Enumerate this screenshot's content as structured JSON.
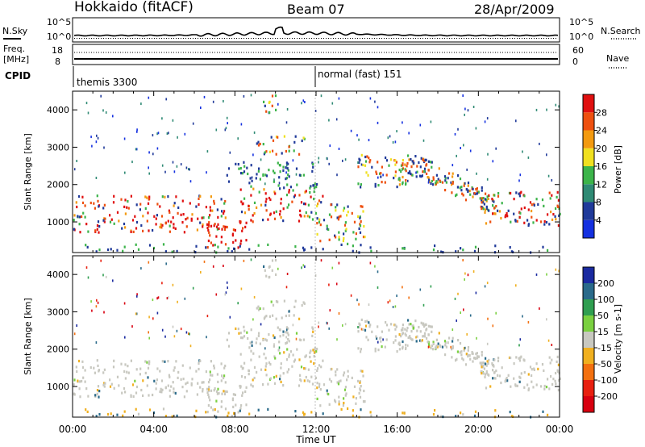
{
  "header": {
    "station": "Hokkaido (fitACF)",
    "beam": "Beam 07",
    "date": "28/Apr/2009"
  },
  "noise_panel": {
    "left_label": "N.Sky",
    "right_label": "N.Search",
    "ticks_left": [
      "10^5",
      "10^0"
    ],
    "ticks_right": [
      "10^5",
      "10^0"
    ]
  },
  "freq_panel": {
    "left_label_1": "Freq.",
    "left_label_2": "[MHz]",
    "right_label": "Nave",
    "ticks_left": [
      "18",
      "8"
    ],
    "ticks_right": [
      "60",
      "0"
    ]
  },
  "cpid": {
    "label": "CPID",
    "modes": [
      "themis 3300",
      "normal (fast) 151"
    ]
  },
  "time_axis": {
    "label": "Time UT",
    "ticks": [
      "00:00",
      "04:00",
      "08:00",
      "12:00",
      "16:00",
      "20:00",
      "00:00"
    ]
  },
  "range_axis": {
    "label": "Slant Range [km]",
    "ticks": [
      "1000",
      "2000",
      "3000",
      "4000"
    ]
  },
  "power_scale": {
    "label": "Power [dB]",
    "ticks": [
      "4",
      "8",
      "12",
      "16",
      "20",
      "24",
      "28"
    ],
    "colors": [
      "#1430e0",
      "#203a9a",
      "#2f8a74",
      "#3cb44a",
      "#f0e020",
      "#f39a10",
      "#ee5010",
      "#e01010"
    ]
  },
  "velocity_scale": {
    "label": "Velocity [m s-1]",
    "ticks": [
      "200",
      "100",
      "50",
      "15",
      "-15",
      "-50",
      "-100",
      "-200"
    ],
    "colors": [
      "#1a2aa0",
      "#2a6a8a",
      "#2f9e50",
      "#7ad040",
      "#c8c8c0",
      "#f0b020",
      "#f37010",
      "#e82010",
      "#d80010"
    ]
  },
  "chart_data": [
    {
      "type": "heatmap",
      "title": "",
      "xlabel": "Time UT",
      "ylabel": "Slant Range [km]",
      "x_ticks": [
        "00:00",
        "04:00",
        "08:00",
        "12:00",
        "16:00",
        "20:00",
        "00:00"
      ],
      "x_range_hours": [
        0,
        24
      ],
      "y_range_km": [
        180,
        4500
      ],
      "colorbar_label": "Power [dB]",
      "colorbar_ticks": [
        4,
        8,
        12,
        16,
        20,
        24,
        28
      ]
    },
    {
      "type": "heatmap",
      "title": "",
      "xlabel": "Time UT",
      "ylabel": "Slant Range [km]",
      "x_ticks": [
        "00:00",
        "04:00",
        "08:00",
        "12:00",
        "16:00",
        "20:00",
        "00:00"
      ],
      "x_range_hours": [
        0,
        24
      ],
      "y_range_km": [
        180,
        4500
      ],
      "colorbar_label": "Velocity [m s-1]",
      "colorbar_ticks": [
        200,
        100,
        50,
        15,
        -15,
        -50,
        -100,
        -200
      ]
    }
  ]
}
